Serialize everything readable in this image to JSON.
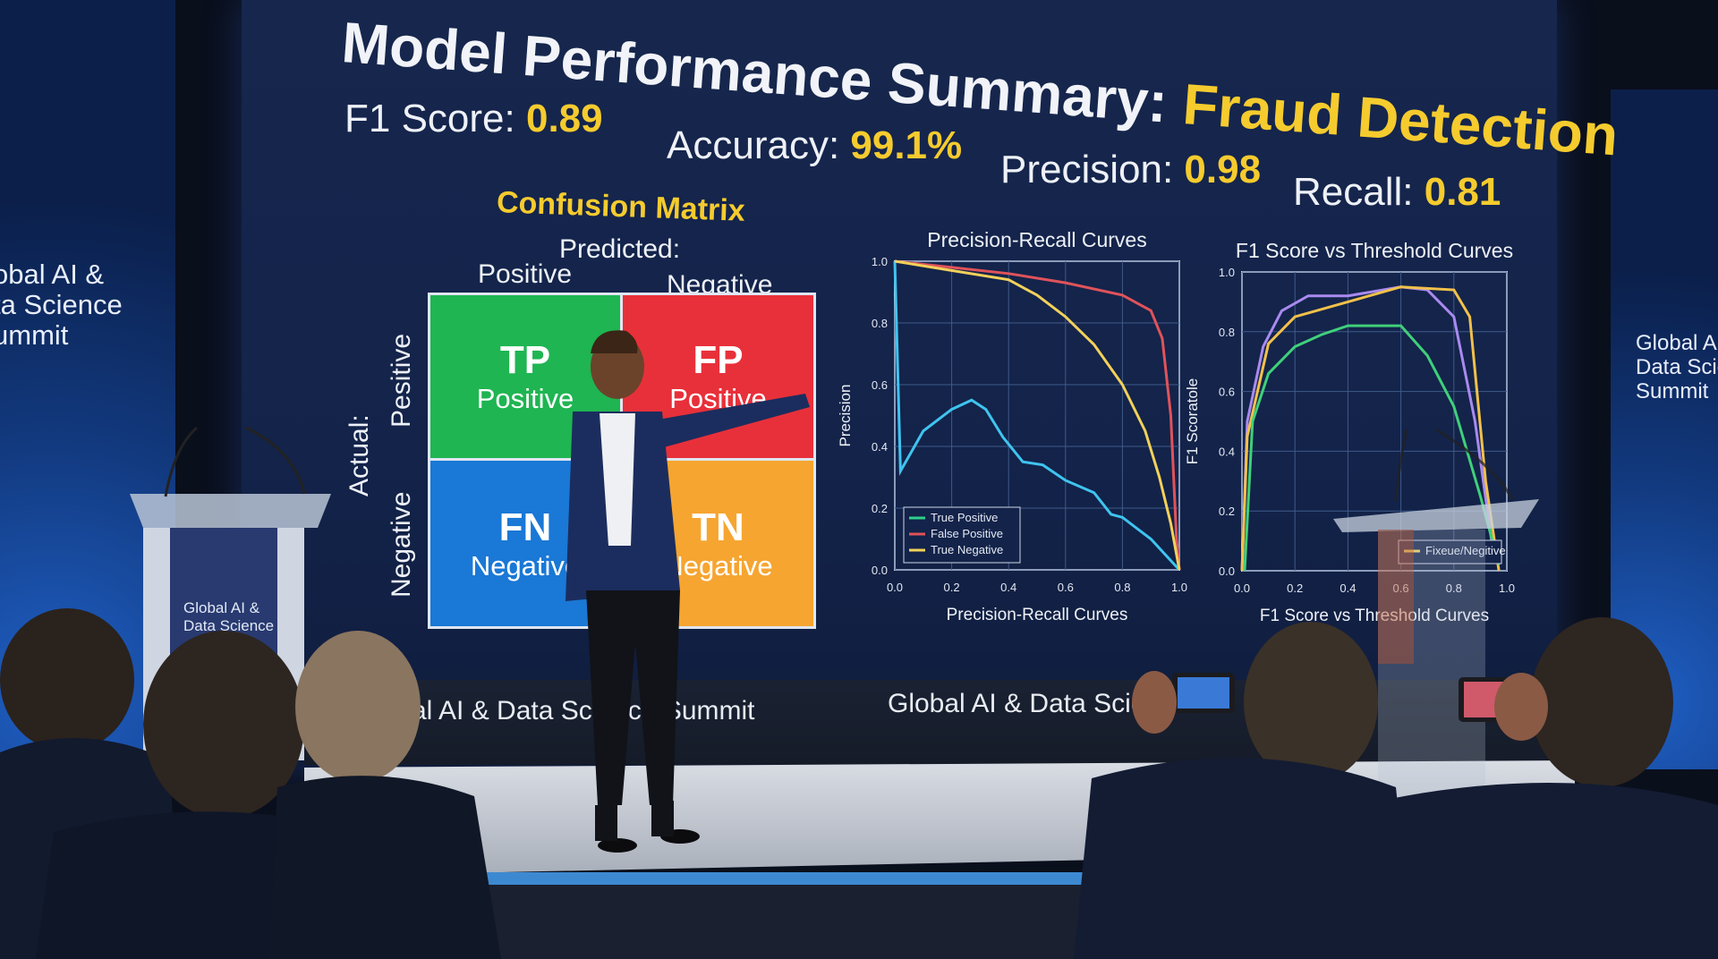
{
  "slide": {
    "title_main": "Model Performance Summary: ",
    "title_highlight": "Fraud Detection",
    "metrics": [
      {
        "label": "F1 Score: ",
        "value": "0.89"
      },
      {
        "label": "Accuracy: ",
        "value": "99.1%"
      },
      {
        "label": "Precision: ",
        "value": "0.98"
      },
      {
        "label": "Recall: ",
        "value": "0.81"
      }
    ],
    "accent_color": "#f5cb2e",
    "confusion_matrix": {
      "title": "Confusion Matrix",
      "predicted_label": "Predicted:",
      "predicted_positive": "Positive",
      "predicted_negative": "Negative",
      "actual_label": "Actual:",
      "actual_positive": "Pesitive",
      "actual_negative": "Negative",
      "cells": [
        {
          "abbr": "TP",
          "text": "Positive",
          "color": "#1fb552"
        },
        {
          "abbr": "FP",
          "text": "Positive",
          "color": "#e8303a"
        },
        {
          "abbr": "FN",
          "text": "Negative",
          "color": "#1a78d6"
        },
        {
          "abbr": "TN",
          "text": "Negative",
          "color": "#f6a531"
        }
      ]
    },
    "footer_left": "al AI & Data Science Summit",
    "footer_right": "Global AI & Data Science"
  },
  "side_panels": {
    "left_text": [
      "obal AI &",
      "ta Science",
      "ummit"
    ],
    "right_text": [
      "Global AI &",
      "Data Scien",
      "Summit"
    ],
    "podium_text": [
      "Global AI &",
      "Data Science"
    ]
  },
  "chart_data": [
    {
      "type": "line",
      "title": "Precision-Recall Curves",
      "xlabel": "Precision-Recall Curves",
      "ylabel": "Precision",
      "xlim": [
        0,
        1
      ],
      "ylim": [
        0,
        1
      ],
      "xticks": [
        "0.0",
        "0.2",
        "0.4",
        "0.6",
        "0.8",
        "1.0"
      ],
      "yticks": [
        "0.0",
        "0.2",
        "0.4",
        "0.6",
        "0.8",
        "1.0"
      ],
      "grid": true,
      "legend_position": "bottom-left",
      "legend": [
        {
          "name": "True Positive",
          "color": "#2fd08a"
        },
        {
          "name": "False Positive",
          "color": "#e0535a"
        },
        {
          "name": "True Negative",
          "color": "#f2d15a"
        }
      ],
      "series": [
        {
          "color": "#3fc4ef",
          "points": [
            [
              0,
              1.0
            ],
            [
              0.02,
              0.32
            ],
            [
              0.1,
              0.45
            ],
            [
              0.2,
              0.52
            ],
            [
              0.27,
              0.55
            ],
            [
              0.32,
              0.52
            ],
            [
              0.38,
              0.43
            ],
            [
              0.45,
              0.35
            ],
            [
              0.52,
              0.34
            ],
            [
              0.6,
              0.29
            ],
            [
              0.7,
              0.25
            ],
            [
              0.76,
              0.18
            ],
            [
              0.8,
              0.17
            ],
            [
              0.9,
              0.1
            ],
            [
              1.0,
              0.0
            ]
          ]
        },
        {
          "color": "#e0535a",
          "points": [
            [
              0,
              1.0
            ],
            [
              0.2,
              0.98
            ],
            [
              0.4,
              0.96
            ],
            [
              0.6,
              0.93
            ],
            [
              0.8,
              0.89
            ],
            [
              0.9,
              0.84
            ],
            [
              0.94,
              0.75
            ],
            [
              0.97,
              0.5
            ],
            [
              0.99,
              0.1
            ],
            [
              1.0,
              0.0
            ]
          ]
        },
        {
          "color": "#f2d15a",
          "points": [
            [
              0,
              1.0
            ],
            [
              0.2,
              0.97
            ],
            [
              0.4,
              0.94
            ],
            [
              0.5,
              0.89
            ],
            [
              0.6,
              0.82
            ],
            [
              0.7,
              0.73
            ],
            [
              0.8,
              0.6
            ],
            [
              0.88,
              0.45
            ],
            [
              0.93,
              0.3
            ],
            [
              0.97,
              0.15
            ],
            [
              1.0,
              0.0
            ]
          ]
        }
      ]
    },
    {
      "type": "line",
      "title": "F1 Score vs Threshold Curves",
      "xlabel": "F1 Score vs Threshold Curves",
      "ylabel": "F1 Scoratole",
      "xlim": [
        0,
        1
      ],
      "ylim": [
        0,
        1
      ],
      "xticks": [
        "0.0",
        "0.2",
        "0.4",
        "0.6",
        "0.8",
        "1.0"
      ],
      "yticks": [
        "0.0",
        "0.2",
        "0.4",
        "0.6",
        "0.8",
        "1.0"
      ],
      "grid": true,
      "legend_position": "bottom-right",
      "legend": [
        {
          "name": "Fixeue/Negitive",
          "color": "#f2d15a"
        }
      ],
      "series": [
        {
          "color": "#a98af0",
          "points": [
            [
              0,
              0
            ],
            [
              0.02,
              0.5
            ],
            [
              0.08,
              0.75
            ],
            [
              0.15,
              0.87
            ],
            [
              0.25,
              0.92
            ],
            [
              0.4,
              0.92
            ],
            [
              0.6,
              0.95
            ],
            [
              0.7,
              0.94
            ],
            [
              0.8,
              0.85
            ],
            [
              0.88,
              0.5
            ],
            [
              0.95,
              0.05
            ]
          ]
        },
        {
          "color": "#f2c14a",
          "points": [
            [
              0,
              0
            ],
            [
              0.02,
              0.45
            ],
            [
              0.1,
              0.76
            ],
            [
              0.2,
              0.85
            ],
            [
              0.4,
              0.9
            ],
            [
              0.6,
              0.95
            ],
            [
              0.8,
              0.94
            ],
            [
              0.86,
              0.85
            ],
            [
              0.92,
              0.3
            ],
            [
              0.97,
              0
            ]
          ]
        },
        {
          "color": "#3fd07a",
          "points": [
            [
              0.01,
              0
            ],
            [
              0.04,
              0.5
            ],
            [
              0.1,
              0.66
            ],
            [
              0.2,
              0.75
            ],
            [
              0.3,
              0.79
            ],
            [
              0.4,
              0.82
            ],
            [
              0.6,
              0.82
            ],
            [
              0.7,
              0.72
            ],
            [
              0.8,
              0.55
            ],
            [
              0.9,
              0.25
            ],
            [
              0.97,
              0.02
            ]
          ]
        }
      ]
    }
  ]
}
